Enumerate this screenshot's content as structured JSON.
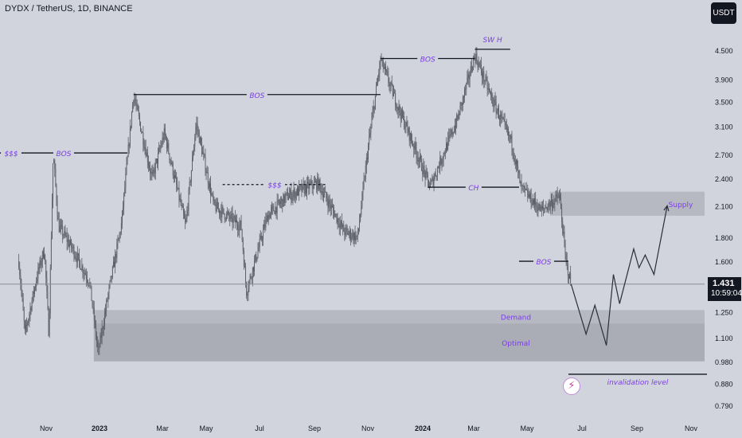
{
  "header": {
    "ticker": "DYDX / TetherUS, 1D, BINANCE",
    "currency_button": "USDT"
  },
  "price_tag": {
    "price": "1.431",
    "countdown": "10:59:04"
  },
  "colors": {
    "background": "#d1d4dc",
    "candles": "#5a5d66",
    "zone": "#9598a1",
    "annotation_text": "#7b3fe4",
    "lines": "#131722"
  },
  "chart_data": {
    "type": "candlestick",
    "scale": "log",
    "y_ticks": [
      4.5,
      3.9,
      3.5,
      3.1,
      2.7,
      2.4,
      2.1,
      1.8,
      1.6,
      1.431,
      1.25,
      1.1,
      0.98,
      0.88,
      0.79
    ],
    "y_tick_labels": [
      "4.500",
      "3.900",
      "3.500",
      "3.100",
      "2.700",
      "2.400",
      "2.100",
      "1.800",
      "1.600",
      "",
      "1.250",
      "1.100",
      "0.980",
      "0.880",
      "0.790"
    ],
    "x_ticks": [
      "Nov",
      "2023",
      "Mar",
      "May",
      "Jul",
      "Sep",
      "Nov",
      "2024",
      "Mar",
      "May",
      "Jul",
      "Sep",
      "Nov"
    ],
    "last_price": 1.431,
    "price_path": [
      [
        "2022-10-01",
        1.6
      ],
      [
        "2022-10-08",
        1.12
      ],
      [
        "2022-10-22",
        1.5
      ],
      [
        "2022-10-30",
        1.7
      ],
      [
        "2022-11-04",
        1.12
      ],
      [
        "2022-11-09",
        2.72
      ],
      [
        "2022-11-15",
        1.9
      ],
      [
        "2022-12-01",
        1.7
      ],
      [
        "2022-12-20",
        1.45
      ],
      [
        "2022-12-30",
        1.02
      ],
      [
        "2023-01-10",
        1.35
      ],
      [
        "2023-01-25",
        1.9
      ],
      [
        "2023-02-08",
        3.62
      ],
      [
        "2023-03-01",
        2.4
      ],
      [
        "2023-03-15",
        3.0
      ],
      [
        "2023-04-08",
        1.9
      ],
      [
        "2023-04-20",
        3.15
      ],
      [
        "2023-05-10",
        2.1
      ],
      [
        "2023-06-10",
        1.9
      ],
      [
        "2023-06-16",
        1.38
      ],
      [
        "2023-07-10",
        2.0
      ],
      [
        "2023-08-01",
        2.2
      ],
      [
        "2023-09-05",
        2.35
      ],
      [
        "2023-10-05",
        1.85
      ],
      [
        "2023-10-20",
        1.8
      ],
      [
        "2023-11-01",
        2.8
      ],
      [
        "2023-11-15",
        4.3
      ],
      [
        "2023-12-05",
        3.4
      ],
      [
        "2023-12-25",
        2.75
      ],
      [
        "2024-01-10",
        2.3
      ],
      [
        "2024-02-10",
        3.2
      ],
      [
        "2024-03-01",
        4.4
      ],
      [
        "2024-03-20",
        3.55
      ],
      [
        "2024-04-12",
        2.85
      ],
      [
        "2024-04-22",
        2.3
      ],
      [
        "2024-05-15",
        2.05
      ],
      [
        "2024-06-05",
        2.2
      ],
      [
        "2024-06-12",
        1.6
      ],
      [
        "2024-06-18",
        1.431
      ]
    ],
    "projection": [
      [
        "2024-06-18",
        1.431
      ],
      [
        "2024-07-05",
        1.12
      ],
      [
        "2024-07-15",
        1.29
      ],
      [
        "2024-07-28",
        1.06
      ],
      [
        "2024-08-05",
        1.5
      ],
      [
        "2024-08-12",
        1.3
      ],
      [
        "2024-08-28",
        1.7
      ],
      [
        "2024-09-03",
        1.55
      ],
      [
        "2024-09-10",
        1.65
      ],
      [
        "2024-09-20",
        1.5
      ],
      [
        "2024-10-05",
        2.1
      ]
    ],
    "zones": [
      {
        "label": "Supply",
        "from": "2024-05-25",
        "to": "2024-11-30",
        "low": 2.0,
        "high": 2.25
      },
      {
        "label": "Demand",
        "from": "2022-12-25",
        "to": "2024-11-30",
        "low": 1.18,
        "high": 1.26
      },
      {
        "label": "Optimal",
        "from": "2022-12-25",
        "to": "2024-11-30",
        "low": 0.98,
        "high": 1.18
      }
    ],
    "annotations": [
      {
        "label": "SW H",
        "from": "2024-03-01",
        "to": "2024-04-10",
        "price": 4.52,
        "label_pos": "above"
      },
      {
        "label": "BOS",
        "from": "2023-11-15",
        "to": "2024-03-01",
        "price": 4.32
      },
      {
        "label": "BOS",
        "from": "2023-02-08",
        "to": "2023-11-15",
        "price": 3.62
      },
      {
        "label": "BOS",
        "from": "2022-09-01",
        "to": "2023-02-01",
        "price": 2.72
      },
      {
        "label": "$$$",
        "from": "2022-09-01",
        "to": "2022-10-05",
        "price": 2.72
      },
      {
        "label": "$$$",
        "from": "2023-05-20",
        "to": "2023-09-15",
        "price": 2.33,
        "dashed": true
      },
      {
        "label": "CH",
        "from": "2024-01-08",
        "to": "2024-04-20",
        "price": 2.3
      },
      {
        "label": "BOS",
        "from": "2024-04-20",
        "to": "2024-06-15",
        "price": 1.6
      },
      {
        "label": "invalidation level",
        "from": "2024-06-15",
        "to": "2024-12-15",
        "price": 0.92,
        "label_pos": "below"
      }
    ]
  }
}
